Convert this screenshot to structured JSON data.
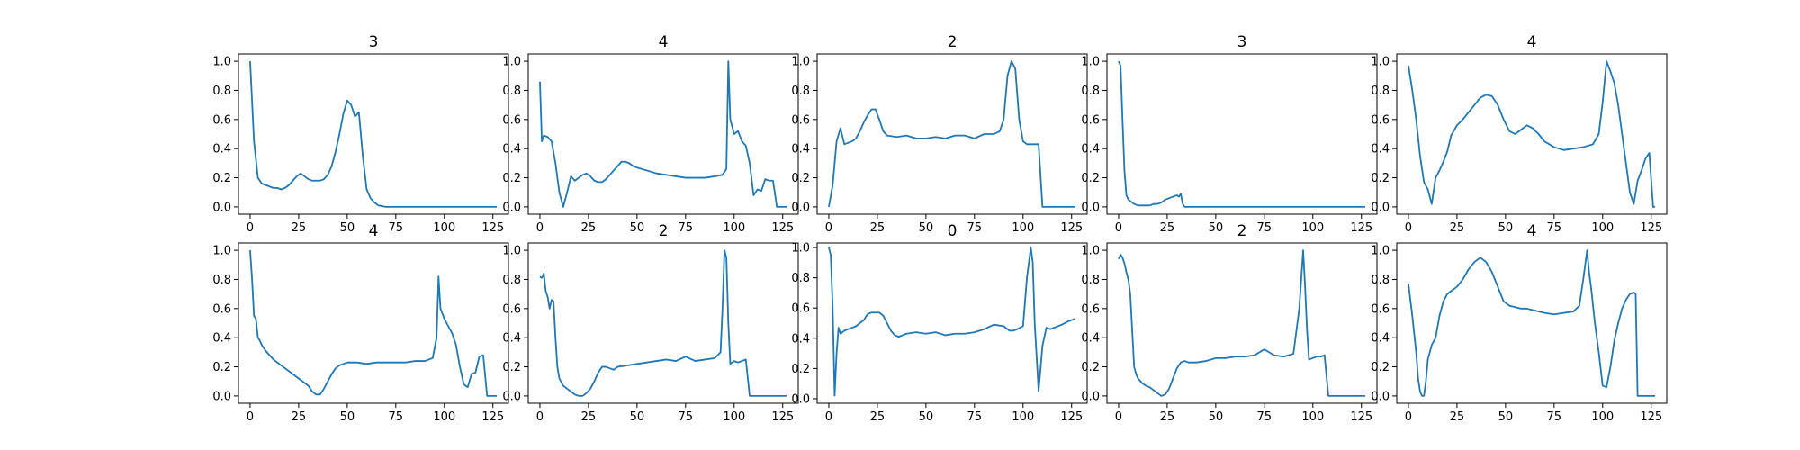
{
  "chart_data": [
    {
      "type": "line",
      "title": "3",
      "xlim": [
        -6,
        133
      ],
      "ylim": [
        -0.05,
        1.05
      ],
      "xticks": [
        0,
        25,
        50,
        75,
        100,
        125
      ],
      "yticks": [
        0.0,
        0.2,
        0.4,
        0.6,
        0.8,
        1.0
      ],
      "x": [
        0,
        2,
        4,
        6,
        8,
        10,
        12,
        14,
        16,
        18,
        20,
        22,
        24,
        26,
        28,
        30,
        32,
        34,
        36,
        38,
        40,
        42,
        44,
        46,
        48,
        50,
        52,
        54,
        56,
        58,
        60,
        62,
        64,
        66,
        68,
        70,
        80,
        100,
        127
      ],
      "y": [
        1.0,
        0.45,
        0.2,
        0.16,
        0.15,
        0.14,
        0.13,
        0.13,
        0.12,
        0.13,
        0.15,
        0.18,
        0.21,
        0.23,
        0.21,
        0.19,
        0.18,
        0.18,
        0.18,
        0.19,
        0.22,
        0.28,
        0.38,
        0.5,
        0.64,
        0.73,
        0.7,
        0.62,
        0.65,
        0.35,
        0.12,
        0.06,
        0.03,
        0.01,
        0.005,
        0.0,
        0.0,
        0.0,
        0.0
      ]
    },
    {
      "type": "line",
      "title": "4",
      "xlim": [
        -6,
        133
      ],
      "ylim": [
        -0.05,
        1.05
      ],
      "xticks": [
        0,
        25,
        50,
        75,
        100,
        125
      ],
      "yticks": [
        0.0,
        0.2,
        0.4,
        0.6,
        0.8,
        1.0
      ],
      "x": [
        0,
        1,
        2,
        4,
        6,
        8,
        10,
        12,
        14,
        16,
        18,
        20,
        22,
        24,
        26,
        28,
        30,
        32,
        34,
        36,
        38,
        40,
        42,
        44,
        46,
        48,
        50,
        55,
        60,
        65,
        70,
        75,
        80,
        85,
        90,
        94,
        96,
        97,
        98,
        100,
        102,
        104,
        106,
        108,
        110,
        112,
        114,
        116,
        118,
        120,
        122,
        124,
        127
      ],
      "y": [
        0.86,
        0.45,
        0.49,
        0.48,
        0.45,
        0.3,
        0.1,
        0.0,
        0.1,
        0.21,
        0.18,
        0.2,
        0.22,
        0.23,
        0.21,
        0.18,
        0.17,
        0.17,
        0.19,
        0.22,
        0.25,
        0.28,
        0.31,
        0.31,
        0.3,
        0.28,
        0.27,
        0.25,
        0.23,
        0.22,
        0.21,
        0.2,
        0.2,
        0.2,
        0.21,
        0.22,
        0.26,
        1.0,
        0.6,
        0.5,
        0.52,
        0.45,
        0.42,
        0.3,
        0.08,
        0.12,
        0.11,
        0.19,
        0.18,
        0.18,
        0.0,
        0.0,
        0.0
      ]
    },
    {
      "type": "line",
      "title": "2",
      "xlim": [
        -6,
        133
      ],
      "ylim": [
        -0.05,
        1.05
      ],
      "xticks": [
        0,
        25,
        50,
        75,
        100,
        125
      ],
      "yticks": [
        0.0,
        0.2,
        0.4,
        0.6,
        0.8,
        1.0
      ],
      "x": [
        0,
        2,
        4,
        6,
        8,
        10,
        12,
        14,
        16,
        18,
        20,
        22,
        24,
        26,
        28,
        30,
        35,
        40,
        45,
        50,
        55,
        60,
        65,
        70,
        75,
        80,
        85,
        88,
        90,
        92,
        94,
        96,
        98,
        100,
        102,
        104,
        106,
        108,
        110,
        115,
        120,
        127
      ],
      "y": [
        0.0,
        0.15,
        0.45,
        0.54,
        0.43,
        0.44,
        0.45,
        0.47,
        0.52,
        0.58,
        0.63,
        0.67,
        0.67,
        0.6,
        0.52,
        0.49,
        0.48,
        0.49,
        0.47,
        0.47,
        0.48,
        0.47,
        0.49,
        0.49,
        0.47,
        0.5,
        0.5,
        0.52,
        0.6,
        0.9,
        1.0,
        0.95,
        0.6,
        0.45,
        0.43,
        0.43,
        0.43,
        0.43,
        0.0,
        0.0,
        0.0,
        0.0
      ]
    },
    {
      "type": "line",
      "title": "3",
      "xlim": [
        -6,
        133
      ],
      "ylim": [
        -0.05,
        1.05
      ],
      "xticks": [
        0,
        25,
        50,
        75,
        100,
        125
      ],
      "yticks": [
        0.0,
        0.2,
        0.4,
        0.6,
        0.8,
        1.0
      ],
      "x": [
        0,
        1,
        2,
        3,
        4,
        5,
        6,
        8,
        10,
        12,
        14,
        16,
        18,
        20,
        22,
        24,
        26,
        28,
        30,
        31,
        32,
        33,
        34,
        40,
        60,
        100,
        127
      ],
      "y": [
        1.0,
        0.97,
        0.6,
        0.25,
        0.08,
        0.05,
        0.04,
        0.02,
        0.01,
        0.01,
        0.01,
        0.01,
        0.02,
        0.02,
        0.03,
        0.05,
        0.06,
        0.07,
        0.08,
        0.07,
        0.09,
        0.02,
        0.0,
        0.0,
        0.0,
        0.0,
        0.0
      ]
    },
    {
      "type": "line",
      "title": "4",
      "xlim": [
        -6,
        133
      ],
      "ylim": [
        -0.05,
        1.05
      ],
      "xticks": [
        0,
        25,
        50,
        75,
        100,
        125
      ],
      "yticks": [
        0.0,
        0.2,
        0.4,
        0.6,
        0.8,
        1.0
      ],
      "x": [
        0,
        2,
        4,
        6,
        8,
        10,
        12,
        14,
        16,
        18,
        20,
        22,
        25,
        28,
        31,
        34,
        37,
        40,
        43,
        46,
        49,
        52,
        55,
        58,
        61,
        64,
        67,
        70,
        75,
        80,
        85,
        90,
        95,
        98,
        100,
        102,
        104,
        106,
        108,
        110,
        112,
        114,
        116,
        118,
        120,
        122,
        124,
        126,
        127
      ],
      "y": [
        0.97,
        0.8,
        0.6,
        0.35,
        0.17,
        0.12,
        0.02,
        0.2,
        0.25,
        0.31,
        0.38,
        0.49,
        0.56,
        0.6,
        0.65,
        0.7,
        0.75,
        0.77,
        0.76,
        0.7,
        0.6,
        0.52,
        0.5,
        0.53,
        0.56,
        0.54,
        0.5,
        0.45,
        0.41,
        0.39,
        0.4,
        0.41,
        0.43,
        0.5,
        0.72,
        1.0,
        0.93,
        0.85,
        0.7,
        0.5,
        0.3,
        0.1,
        0.02,
        0.18,
        0.25,
        0.33,
        0.37,
        0.0,
        0.0
      ]
    },
    {
      "type": "line",
      "title": "4",
      "xlim": [
        -6,
        133
      ],
      "ylim": [
        -0.05,
        1.05
      ],
      "xticks": [
        0,
        25,
        50,
        75,
        100,
        125
      ],
      "yticks": [
        0.0,
        0.2,
        0.4,
        0.6,
        0.8,
        1.0
      ],
      "x": [
        0,
        1,
        2,
        3,
        4,
        5,
        6,
        8,
        10,
        12,
        14,
        16,
        18,
        20,
        22,
        24,
        26,
        28,
        30,
        32,
        34,
        36,
        38,
        40,
        42,
        44,
        46,
        48,
        50,
        55,
        60,
        65,
        70,
        75,
        80,
        85,
        90,
        94,
        96,
        97,
        98,
        100,
        102,
        104,
        106,
        108,
        110,
        112,
        114,
        116,
        118,
        120,
        122,
        124,
        127
      ],
      "y": [
        1.0,
        0.8,
        0.55,
        0.53,
        0.4,
        0.38,
        0.35,
        0.31,
        0.28,
        0.25,
        0.23,
        0.21,
        0.19,
        0.17,
        0.15,
        0.13,
        0.11,
        0.09,
        0.07,
        0.03,
        0.01,
        0.01,
        0.05,
        0.1,
        0.15,
        0.19,
        0.21,
        0.22,
        0.23,
        0.23,
        0.22,
        0.23,
        0.23,
        0.23,
        0.23,
        0.24,
        0.24,
        0.26,
        0.4,
        0.82,
        0.6,
        0.53,
        0.48,
        0.43,
        0.35,
        0.2,
        0.08,
        0.06,
        0.15,
        0.16,
        0.27,
        0.28,
        0.0,
        0.0,
        0.0
      ]
    },
    {
      "type": "line",
      "title": "2",
      "xlim": [
        -6,
        133
      ],
      "ylim": [
        -0.05,
        1.05
      ],
      "xticks": [
        0,
        25,
        50,
        75,
        100,
        125
      ],
      "yticks": [
        0.0,
        0.2,
        0.4,
        0.6,
        0.8,
        1.0
      ],
      "x": [
        0,
        1,
        2,
        3,
        4,
        5,
        6,
        7,
        8,
        9,
        10,
        12,
        14,
        16,
        18,
        20,
        22,
        24,
        26,
        28,
        30,
        32,
        34,
        36,
        38,
        40,
        45,
        50,
        55,
        60,
        65,
        70,
        75,
        80,
        85,
        90,
        93,
        94,
        95,
        96,
        97,
        98,
        100,
        102,
        104,
        106,
        108,
        110,
        115,
        120,
        127
      ],
      "y": [
        0.82,
        0.81,
        0.84,
        0.72,
        0.68,
        0.6,
        0.66,
        0.65,
        0.4,
        0.2,
        0.12,
        0.07,
        0.05,
        0.03,
        0.01,
        0.0,
        0.0,
        0.02,
        0.05,
        0.1,
        0.16,
        0.2,
        0.2,
        0.19,
        0.18,
        0.2,
        0.21,
        0.22,
        0.23,
        0.24,
        0.25,
        0.24,
        0.27,
        0.24,
        0.25,
        0.26,
        0.3,
        0.6,
        1.0,
        0.95,
        0.5,
        0.22,
        0.24,
        0.23,
        0.24,
        0.25,
        0.0,
        0.0,
        0.0,
        0.0,
        0.0
      ]
    },
    {
      "type": "line",
      "title": "0",
      "xlim": [
        -6,
        133
      ],
      "ylim": [
        -0.03,
        1.03
      ],
      "xticks": [
        0,
        25,
        50,
        75,
        100,
        125
      ],
      "yticks": [
        0.0,
        0.2,
        0.4,
        0.6,
        0.8,
        1.0
      ],
      "x": [
        0,
        1,
        2,
        3,
        4,
        5,
        6,
        8,
        10,
        12,
        14,
        16,
        18,
        20,
        22,
        24,
        26,
        28,
        30,
        32,
        34,
        36,
        38,
        40,
        45,
        50,
        55,
        60,
        65,
        70,
        75,
        80,
        85,
        90,
        93,
        95,
        97,
        100,
        102,
        104,
        105,
        106,
        108,
        110,
        112,
        114,
        116,
        118,
        120,
        123,
        127
      ],
      "y": [
        1.0,
        0.95,
        0.6,
        0.02,
        0.3,
        0.47,
        0.43,
        0.45,
        0.46,
        0.47,
        0.48,
        0.5,
        0.52,
        0.56,
        0.57,
        0.57,
        0.57,
        0.55,
        0.5,
        0.45,
        0.42,
        0.41,
        0.42,
        0.43,
        0.44,
        0.43,
        0.44,
        0.42,
        0.43,
        0.43,
        0.44,
        0.46,
        0.49,
        0.48,
        0.45,
        0.45,
        0.46,
        0.48,
        0.8,
        1.0,
        0.9,
        0.5,
        0.05,
        0.35,
        0.47,
        0.46,
        0.47,
        0.48,
        0.49,
        0.51,
        0.53
      ]
    },
    {
      "type": "line",
      "title": "2",
      "xlim": [
        -6,
        133
      ],
      "ylim": [
        -0.05,
        1.05
      ],
      "xticks": [
        0,
        25,
        50,
        75,
        100,
        125
      ],
      "yticks": [
        0.0,
        0.2,
        0.4,
        0.6,
        0.8,
        1.0
      ],
      "x": [
        0,
        1,
        2,
        3,
        4,
        5,
        6,
        7,
        8,
        9,
        10,
        12,
        14,
        16,
        18,
        20,
        22,
        24,
        26,
        28,
        30,
        32,
        34,
        36,
        40,
        45,
        50,
        55,
        60,
        65,
        70,
        75,
        80,
        85,
        90,
        93,
        95,
        96,
        97,
        98,
        100,
        102,
        104,
        106,
        108,
        110,
        115,
        120,
        127
      ],
      "y": [
        0.94,
        0.97,
        0.95,
        0.91,
        0.85,
        0.8,
        0.7,
        0.45,
        0.2,
        0.15,
        0.12,
        0.09,
        0.07,
        0.06,
        0.04,
        0.02,
        0.0,
        0.01,
        0.05,
        0.12,
        0.19,
        0.23,
        0.24,
        0.23,
        0.23,
        0.24,
        0.26,
        0.26,
        0.27,
        0.27,
        0.28,
        0.32,
        0.28,
        0.27,
        0.29,
        0.6,
        1.0,
        0.75,
        0.45,
        0.25,
        0.26,
        0.27,
        0.27,
        0.28,
        0.0,
        0.0,
        0.0,
        0.0,
        0.0
      ]
    },
    {
      "type": "line",
      "title": "4",
      "xlim": [
        -6,
        133
      ],
      "ylim": [
        -0.05,
        1.05
      ],
      "xticks": [
        0,
        25,
        50,
        75,
        100,
        125
      ],
      "yticks": [
        0.0,
        0.2,
        0.4,
        0.6,
        0.8,
        1.0
      ],
      "x": [
        0,
        2,
        4,
        5,
        6,
        7,
        8,
        9,
        10,
        12,
        14,
        16,
        18,
        20,
        22,
        25,
        28,
        31,
        34,
        37,
        40,
        43,
        46,
        49,
        52,
        55,
        58,
        61,
        64,
        67,
        70,
        75,
        80,
        85,
        88,
        90,
        92,
        93,
        94,
        96,
        98,
        100,
        102,
        104,
        106,
        108,
        110,
        112,
        114,
        116,
        117,
        118,
        120,
        124,
        127
      ],
      "y": [
        0.77,
        0.55,
        0.3,
        0.12,
        0.03,
        0.0,
        0.0,
        0.1,
        0.25,
        0.35,
        0.4,
        0.55,
        0.65,
        0.7,
        0.72,
        0.75,
        0.8,
        0.87,
        0.92,
        0.95,
        0.92,
        0.85,
        0.75,
        0.65,
        0.62,
        0.61,
        0.6,
        0.6,
        0.59,
        0.58,
        0.57,
        0.56,
        0.57,
        0.58,
        0.62,
        0.8,
        1.0,
        0.85,
        0.75,
        0.5,
        0.3,
        0.07,
        0.06,
        0.2,
        0.38,
        0.5,
        0.6,
        0.66,
        0.7,
        0.71,
        0.7,
        0.0,
        0.0,
        0.0,
        0.0
      ]
    }
  ]
}
